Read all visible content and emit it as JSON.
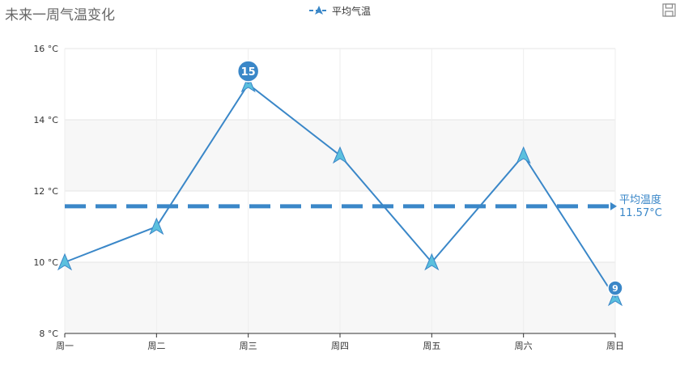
{
  "header": {
    "title": "未来一周气温变化",
    "save_icon": "save-icon"
  },
  "chart_data": {
    "type": "line",
    "title": "未来一周气温变化",
    "categories": [
      "周一",
      "周二",
      "周三",
      "周四",
      "周五",
      "周六",
      "周日"
    ],
    "series": [
      {
        "name": "平均气温",
        "values": [
          10,
          11,
          15,
          13,
          10,
          13,
          9
        ],
        "color": "#3a87c8",
        "marker": "triangle"
      }
    ],
    "y_ticks": [
      "8 °C",
      "10 °C",
      "12 °C",
      "14 °C",
      "16 °C"
    ],
    "ylim": [
      8,
      16
    ],
    "y_unit": "°C",
    "grid": true,
    "legend_position": "top-center",
    "mark_points": [
      {
        "category": "周三",
        "value": 15,
        "label": "15",
        "kind": "max"
      },
      {
        "category": "周日",
        "value": 9,
        "label": "9",
        "kind": "min"
      }
    ],
    "mark_line": {
      "value": 11.57,
      "label_line1": "平均温度",
      "label_line2": "11.57°C",
      "style": "dashed"
    }
  }
}
